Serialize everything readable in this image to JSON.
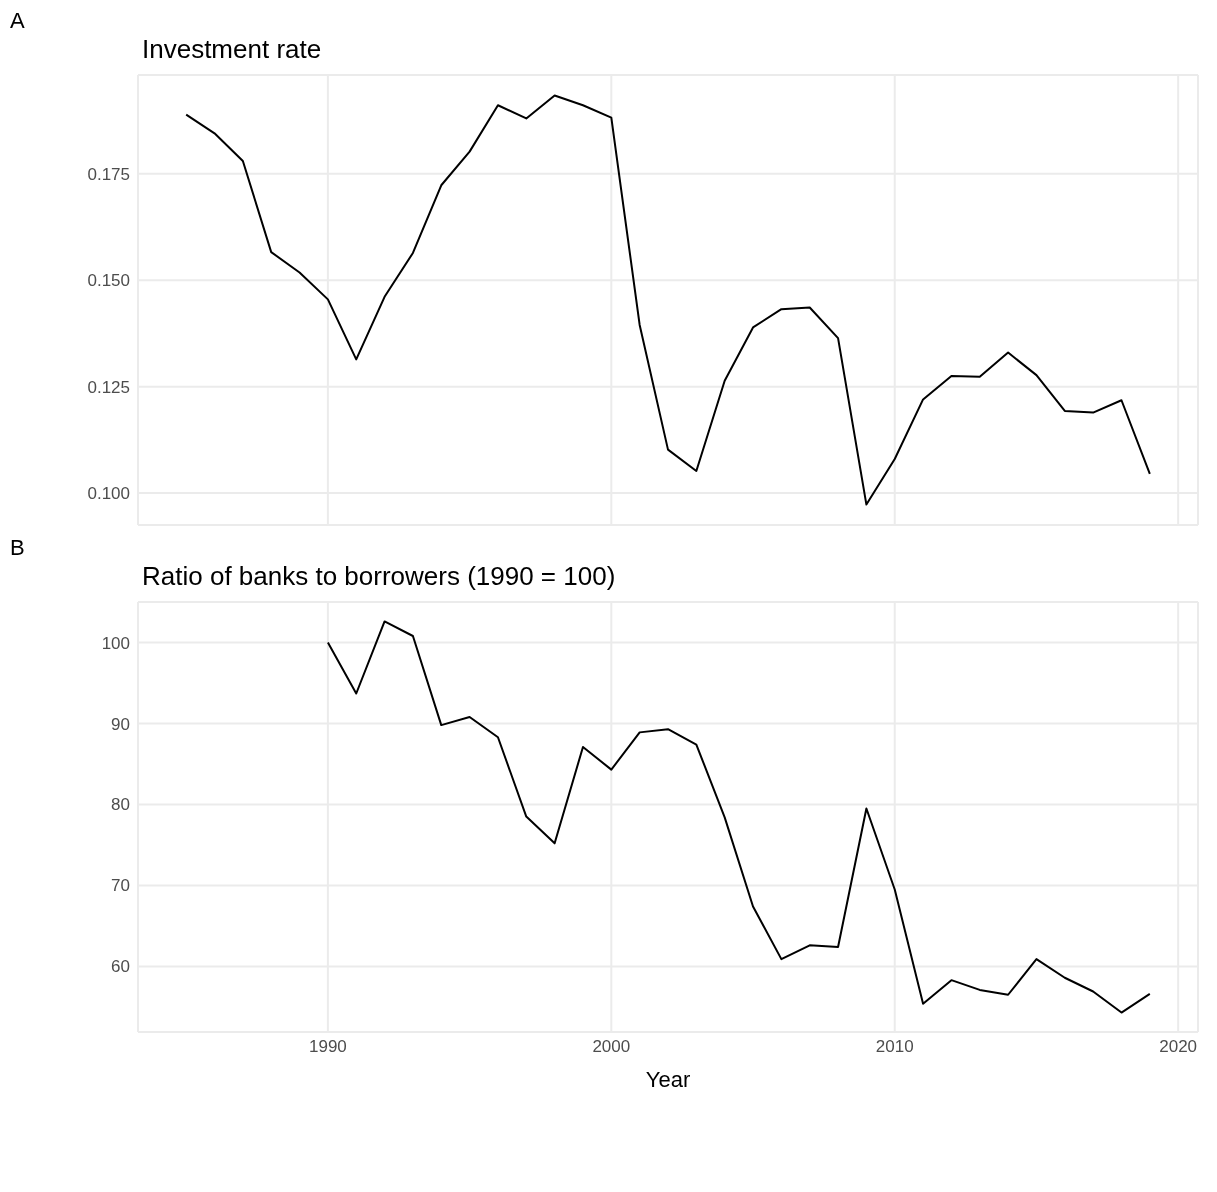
{
  "chart_data": [
    {
      "type": "line",
      "title": "Investment rate",
      "annotations": [
        "A"
      ],
      "tick_labels": "y",
      "grid": true,
      "xlim": [
        1983.3,
        2020.7
      ],
      "xticks": [
        1990,
        2000,
        2010,
        2020
      ],
      "ylim": [
        0.0925,
        0.1982
      ],
      "yticks": [
        {
          "value": 0.1,
          "label": "0.100"
        },
        {
          "value": 0.125,
          "label": "0.125"
        },
        {
          "value": 0.15,
          "label": "0.150"
        },
        {
          "value": 0.175,
          "label": "0.175"
        }
      ],
      "x": [
        1985,
        1986,
        1987,
        1988,
        1989,
        1990,
        1991,
        1992,
        1993,
        1994,
        1995,
        1996,
        1997,
        1998,
        1999,
        2000,
        2001,
        2002,
        2003,
        2004,
        2005,
        2006,
        2007,
        2008,
        2009,
        2010,
        2011,
        2012,
        2013,
        2014,
        2015,
        2016,
        2017,
        2018,
        2019
      ],
      "series": [
        {
          "color": "#000000",
          "values": [
            0.1889,
            0.1845,
            0.178,
            0.1566,
            0.1518,
            0.1455,
            0.1314,
            0.1461,
            0.1564,
            0.1723,
            0.1802,
            0.1911,
            0.188,
            0.1934,
            0.1911,
            0.1882,
            0.1395,
            0.1102,
            0.1052,
            0.1264,
            0.1389,
            0.1432,
            0.1436,
            0.1364,
            0.0973,
            0.108,
            0.122,
            0.1275,
            0.1273,
            0.133,
            0.1277,
            0.1193,
            0.1189,
            0.1218,
            0.1045
          ]
        }
      ]
    },
    {
      "type": "line",
      "title": "Ratio of banks to borrowers (1990 = 100)",
      "xlabel": "Year",
      "annotations": [
        "B"
      ],
      "grid": true,
      "xlim": [
        1983.3,
        2020.7
      ],
      "xticks": [
        1990,
        2000,
        2010,
        2020
      ],
      "ylim": [
        51.9,
        105
      ],
      "yticks": [
        60,
        70,
        80,
        90,
        100
      ],
      "x": [
        1990,
        1991,
        1992,
        1993,
        1994,
        1995,
        1996,
        1997,
        1998,
        1999,
        2000,
        2001,
        2002,
        2003,
        2004,
        2005,
        2006,
        2007,
        2008,
        2009,
        2010,
        2011,
        2012,
        2013,
        2014,
        2015,
        2016,
        2017,
        2018,
        2019
      ],
      "series": [
        {
          "color": "#000000",
          "values": [
            100,
            93.7,
            102.6,
            100.8,
            89.8,
            90.8,
            88.3,
            78.5,
            75.2,
            87.1,
            84.3,
            88.9,
            89.3,
            87.4,
            78.4,
            67.4,
            60.9,
            62.6,
            62.4,
            79.5,
            69.5,
            55.4,
            58.3,
            57.1,
            56.5,
            60.9,
            58.6,
            56.9,
            54.3,
            56.6
          ]
        }
      ]
    }
  ]
}
